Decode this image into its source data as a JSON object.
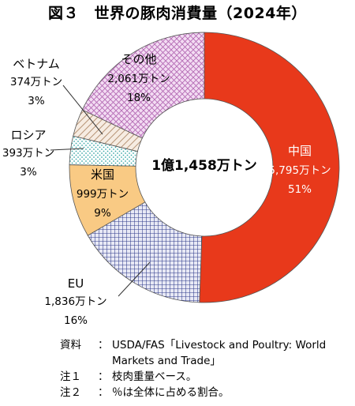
{
  "header": {
    "title": "図３　世界の豚肉消費量（2024年）"
  },
  "chart_data": {
    "type": "pie",
    "variant": "donut",
    "center_label": "1億1,458万トン",
    "slices": [
      {
        "name": "中国",
        "value_label": "5,795万トン",
        "pct_label": "51%",
        "value": 5795,
        "pct": 51,
        "color": "#e8391b",
        "text_color": "#ffffff",
        "pattern": "solid"
      },
      {
        "name": "EU",
        "value_label": "1,836万トン",
        "pct_label": "16%",
        "value": 1836,
        "pct": 16,
        "color": "#2f3b8c",
        "text_color": "#000000",
        "pattern": "grid"
      },
      {
        "name": "米国",
        "value_label": "999万トン",
        "pct_label": "9%",
        "value": 999,
        "pct": 9,
        "color": "#f9ca84",
        "text_color": "#000000",
        "pattern": "solid"
      },
      {
        "name": "ロシア",
        "value_label": "393万トン",
        "pct_label": "3%",
        "value": 393,
        "pct": 3,
        "color": "#7fd4d4",
        "text_color": "#000000",
        "pattern": "dots"
      },
      {
        "name": "ベトナム",
        "value_label": "374万トン",
        "pct_label": "3%",
        "value": 374,
        "pct": 3,
        "color": "#b08a6a",
        "text_color": "#000000",
        "pattern": "diagonal"
      },
      {
        "name": "その他",
        "value_label": "2,061万トン",
        "pct_label": "18%",
        "value": 2061,
        "pct": 18,
        "color": "#b46ab4",
        "text_color": "#000000",
        "pattern": "crosshatch"
      }
    ]
  },
  "notes": {
    "source_key": "資料",
    "source_text": "USDA/FAS「Livestock and Poultry: World",
    "source_text_cont": "Markets and Trade」",
    "note1_key": "注１",
    "note1_text": "枝肉重量ベース。",
    "note2_key": "注２",
    "note2_text": "％は全体に占める割合。"
  }
}
